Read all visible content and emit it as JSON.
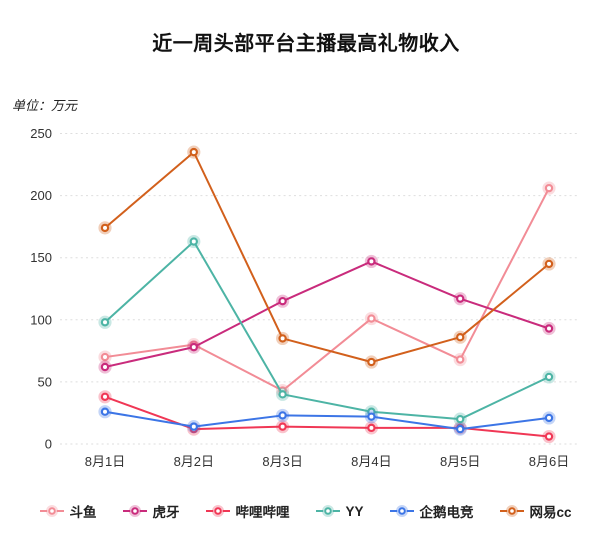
{
  "chart_data": {
    "type": "line",
    "title": "近一周头部平台主播最高礼物收入",
    "unit_label": "单位：万元",
    "categories": [
      "8月1日",
      "8月2日",
      "8月3日",
      "8月4日",
      "8月5日",
      "8月6日"
    ],
    "series": [
      {
        "name": "斗鱼",
        "color": "#F28C96",
        "values": [
          70,
          80,
          43,
          101,
          68,
          206
        ]
      },
      {
        "name": "虎牙",
        "color": "#C92B7C",
        "values": [
          62,
          78,
          115,
          147,
          117,
          93
        ]
      },
      {
        "name": "哔哩哔哩",
        "color": "#F03755",
        "values": [
          38,
          12,
          14,
          13,
          13,
          6
        ]
      },
      {
        "name": "YY",
        "color": "#4DB4A5",
        "values": [
          98,
          163,
          40,
          26,
          20,
          54
        ]
      },
      {
        "name": "企鹅电竞",
        "color": "#3C75E6",
        "values": [
          26,
          14,
          23,
          22,
          12,
          21
        ]
      },
      {
        "name": "网易cc",
        "color": "#D2601C",
        "values": [
          174,
          235,
          85,
          66,
          86,
          145
        ]
      }
    ],
    "yticks": [
      0,
      50,
      100,
      150,
      200,
      250
    ],
    "ylim": [
      0,
      250
    ],
    "grid": "dashed-horizontal",
    "grid_color": "#DEDEDE",
    "tick_label_color": "#333333",
    "legend_position": "bottom",
    "xlabel": "",
    "ylabel": ""
  }
}
